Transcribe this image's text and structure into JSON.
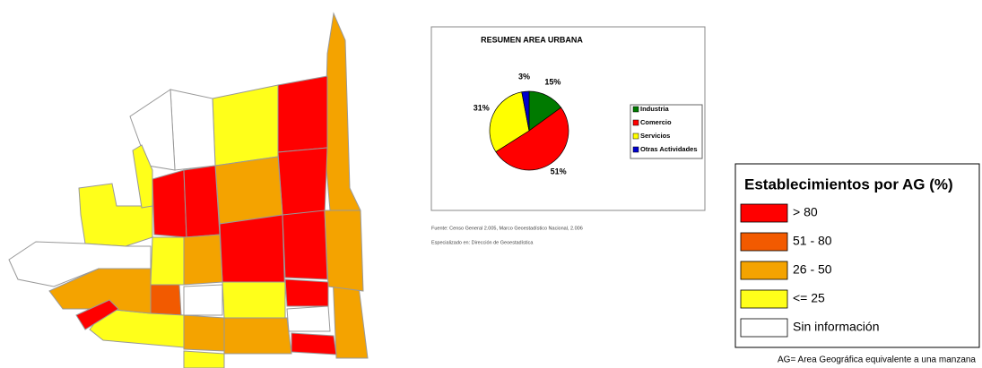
{
  "chart_data": {
    "type": "pie",
    "title": "RESUMEN AREA URBANA",
    "categories": [
      "Industria",
      "Comercio",
      "Servicios",
      "Otras Actividades"
    ],
    "values": [
      15,
      51,
      31,
      3
    ],
    "value_labels": [
      "15%",
      "51%",
      "31%",
      "3%"
    ],
    "colors": [
      "#007a00",
      "#ff0000",
      "#ffff00",
      "#0000cc"
    ]
  },
  "source_note": "Fuente: Censo General 2.005, Marco Geoestadístico Nacional, 2.006",
  "spatial_note": "Especializado en: Dirección de Geoestadística",
  "legend": {
    "title": "Establecimientos por AG (%)",
    "items": [
      {
        "label": "> 80",
        "color": "#ff0000"
      },
      {
        "label": "51 - 80",
        "color": "#f25a00"
      },
      {
        "label": "26 - 50",
        "color": "#f4a300"
      },
      {
        "label": "<= 25",
        "color": "#ffff1a"
      },
      {
        "label": "Sin información",
        "color": "#ffffff"
      }
    ]
  },
  "footnote": "AG= Area Geográfica equivalente a una manzana"
}
